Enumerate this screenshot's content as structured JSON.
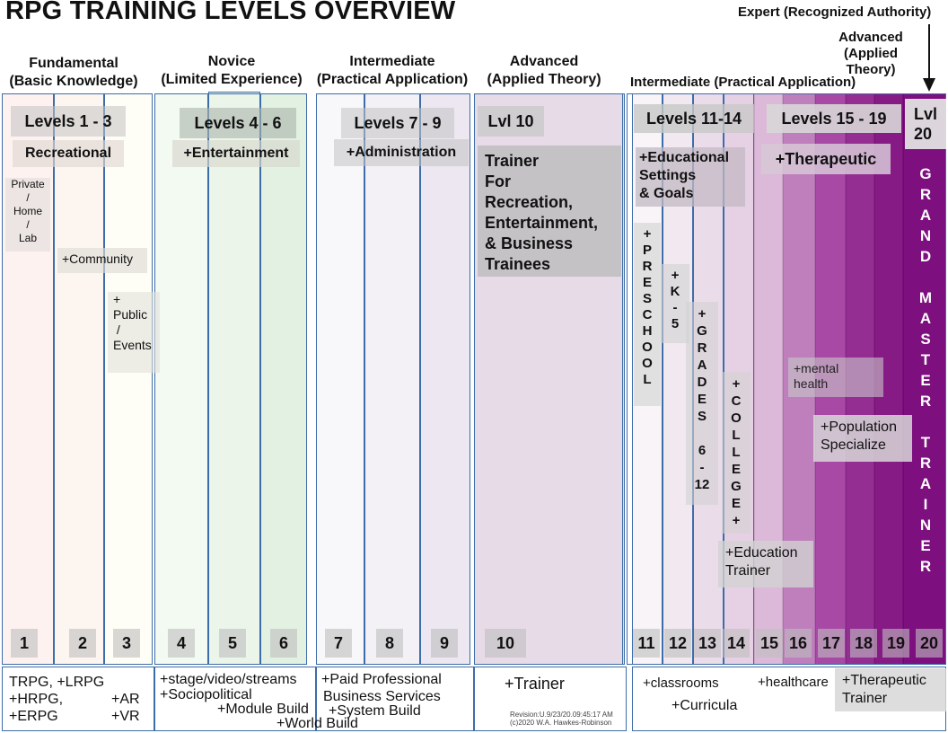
{
  "title": "RPG TRAINING LEVELS OVERVIEW",
  "top_note": "Expert (Recognized Authority)",
  "top_note2": "Advanced\n(Applied\nTheory)",
  "headers": {
    "fundamental": "Fundamental\n(Basic Knowledge)",
    "novice": "Novice\n(Limited Experience)",
    "intermediate": "Intermediate\n(Practical Application)",
    "advanced": "Advanced\n(Applied Theory)",
    "intermediate2": "Intermediate (Practical Application)"
  },
  "tags": {
    "l1_3": "Levels 1 - 3",
    "l4_6": "Levels 4 - 6",
    "l7_9": "Levels 7 - 9",
    "l10": "Lvl 10",
    "l11_14": "Levels 11-14",
    "l15_19": "Levels 15 - 19",
    "l20": "Lvl\n20"
  },
  "subtags": {
    "recreational": "Recreational",
    "entertainment": "+Entertainment",
    "administration": "+Administration",
    "therapeutic": "+Therapeutic",
    "educational": "+Educational\nSettings\n& Goals"
  },
  "notes": {
    "private": "Private\n/\nHome\n/\nLab",
    "community": "+Community",
    "public": "+\nPublic\n /\nEvents",
    "trainer10": "Trainer\nFor\nRecreation,\nEntertainment,\n& Business\nTrainees",
    "mental": "+mental\nhealth",
    "population": "+Population\nSpecialize",
    "edu_trainer": "+Education\nTrainer",
    "preschool": "+\nP\nR\nE\nS\nC\nH\nO\nO\nL",
    "k5": "+\nK\n-\n5",
    "grades": "+\nG\nR\nA\nD\nE\nS\n\n6\n-\n12",
    "college": "+\nC\nO\nL\nL\nE\nG\nE\n+",
    "grandmaster": "G\nR\nA\nN\nD\n\nM\nA\nS\nT\nE\nR\n\nT\nR\nA\nI\nN\nE\nR"
  },
  "levels": [
    "1",
    "2",
    "3",
    "4",
    "5",
    "6",
    "7",
    "8",
    "9",
    "10",
    "11",
    "12",
    "13",
    "14",
    "15",
    "16",
    "17",
    "18",
    "19",
    "20"
  ],
  "bottom": {
    "b1": "TRPG, +LRPG",
    "b2": "+HRPG,",
    "b3": "+AR",
    "b4": "+ERPG",
    "b5": "+VR",
    "b6": "+stage/video/streams",
    "b7": "+Sociopolitical",
    "b8": "+Module Build",
    "b9": "+World Build",
    "b10": "+Paid Professional",
    "b11": "Business Services",
    "b12": "+System Build",
    "b13": "+Trainer",
    "b14": "+classrooms",
    "b15": "+Curricula",
    "b16": "+healthcare",
    "b17": "+Therapeutic\nTrainer"
  },
  "revision": "Revision:U.9/23/20.09:45:17 AM",
  "copyright": "(c)2020 W.A. Hawkes-Robinson"
}
